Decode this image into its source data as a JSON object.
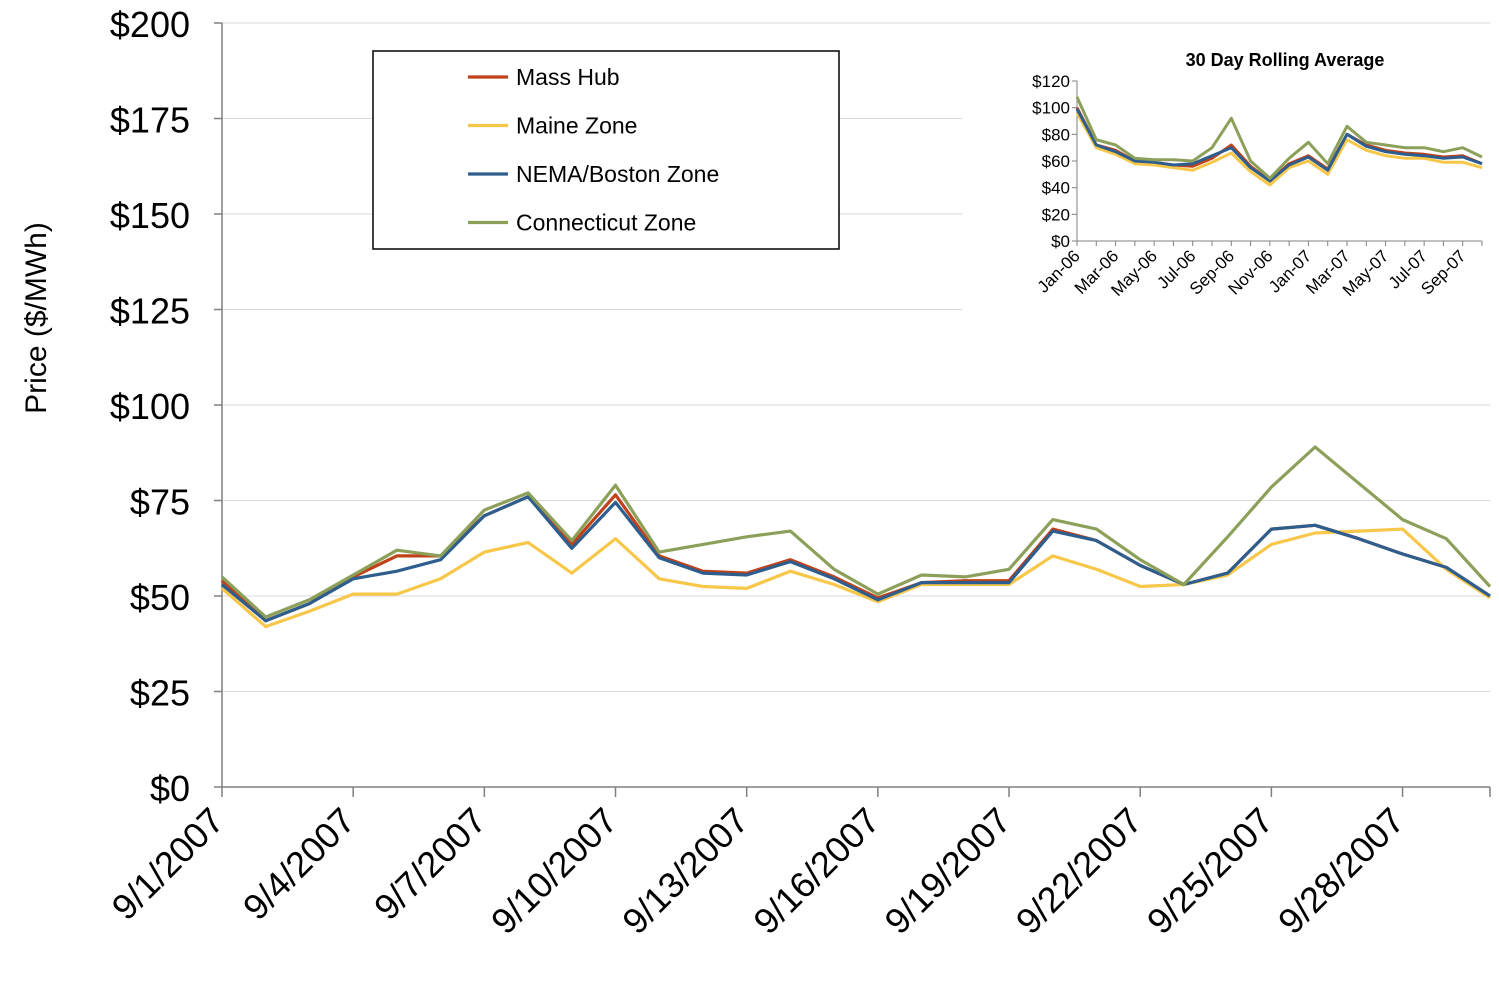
{
  "chart_data": [
    {
      "type": "line",
      "title": "",
      "xlabel": "",
      "ylabel": "Price ($/MWh)",
      "ylim": [
        0,
        200
      ],
      "y_ticks": [
        0,
        25,
        50,
        75,
        100,
        125,
        150,
        175,
        200
      ],
      "y_tick_labels": [
        "$0",
        "$25",
        "$50",
        "$75",
        "$100",
        "$125",
        "$150",
        "$175",
        "$200"
      ],
      "x": [
        "9/1/2007",
        "9/2/2007",
        "9/3/2007",
        "9/4/2007",
        "9/5/2007",
        "9/6/2007",
        "9/7/2007",
        "9/8/2007",
        "9/9/2007",
        "9/10/2007",
        "9/11/2007",
        "9/12/2007",
        "9/13/2007",
        "9/14/2007",
        "9/15/2007",
        "9/16/2007",
        "9/17/2007",
        "9/18/2007",
        "9/19/2007",
        "9/20/2007",
        "9/21/2007",
        "9/22/2007",
        "9/23/2007",
        "9/24/2007",
        "9/25/2007",
        "9/26/2007",
        "9/27/2007",
        "9/28/2007",
        "9/29/2007",
        "9/30/2007"
      ],
      "x_tick_labels": [
        "9/1/2007",
        "9/4/2007",
        "9/7/2007",
        "9/10/2007",
        "9/13/2007",
        "9/16/2007",
        "9/19/2007",
        "9/22/2007",
        "9/25/2007",
        "9/28/2007"
      ],
      "grid": "horizontal",
      "legend_position": "top-left",
      "series": [
        {
          "name": "Mass Hub",
          "color": "#C0421A",
          "values": [
            54,
            43.5,
            48,
            55,
            60.5,
            60.5,
            71,
            76,
            63.5,
            76.5,
            60.5,
            56.5,
            56,
            59.5,
            55,
            49.5,
            53.5,
            54,
            54,
            67.5,
            64.5,
            58,
            53,
            56,
            67.5,
            68.5,
            65,
            61,
            57.5,
            50
          ]
        },
        {
          "name": "Maine Zone",
          "color": "#F7C74A",
          "values": [
            52,
            42,
            46,
            50.5,
            50.5,
            54.5,
            61.5,
            64,
            56,
            65,
            54.5,
            52.5,
            52,
            56.5,
            53,
            48.5,
            53,
            53,
            53,
            60.5,
            57,
            52.5,
            53,
            55.5,
            63.5,
            66.5,
            67,
            67.5,
            57,
            49.5
          ]
        },
        {
          "name": "NEMA/Boston Zone",
          "color": "#2E5E8E",
          "values": [
            53,
            43.5,
            48,
            54.5,
            56.5,
            59.5,
            71,
            76,
            62.5,
            74.5,
            60,
            56,
            55.5,
            59,
            54.5,
            49,
            53.5,
            53.5,
            53.5,
            67,
            64.5,
            58,
            53,
            56,
            67.5,
            68.5,
            65,
            61,
            57.5,
            50
          ]
        },
        {
          "name": "Connecticut Zone",
          "color": "#8DA05A",
          "values": [
            55,
            44.5,
            49,
            55.5,
            62,
            60.5,
            72.5,
            77,
            64.5,
            79,
            61.5,
            63.5,
            65.5,
            67,
            57,
            50.5,
            55.5,
            55,
            57,
            70,
            67.5,
            59.5,
            53,
            65.5,
            78.5,
            89,
            79.5,
            70,
            65,
            52.5
          ]
        }
      ]
    },
    {
      "type": "line",
      "title": "30 Day Rolling Average",
      "xlabel": "",
      "ylabel": "",
      "ylim": [
        0,
        120
      ],
      "y_ticks": [
        0,
        20,
        40,
        60,
        80,
        100,
        120
      ],
      "y_tick_labels": [
        "$0",
        "$20",
        "$40",
        "$60",
        "$80",
        "$100",
        "$120"
      ],
      "x": [
        "Jan-06",
        "Feb-06",
        "Mar-06",
        "Apr-06",
        "May-06",
        "Jun-06",
        "Jul-06",
        "Aug-06",
        "Sep-06",
        "Oct-06",
        "Nov-06",
        "Dec-06",
        "Jan-07",
        "Feb-07",
        "Mar-07",
        "Apr-07",
        "May-07",
        "Jun-07",
        "Jul-07",
        "Aug-07",
        "Sep-07",
        "Oct-07"
      ],
      "x_tick_labels": [
        "Jan-06",
        "Mar-06",
        "May-06",
        "Jul-06",
        "Sep-06",
        "Nov-06",
        "Jan-07",
        "Mar-07",
        "May-07",
        "Jul-07",
        "Sep-07"
      ],
      "grid": "none",
      "series": [
        {
          "name": "Mass Hub",
          "color": "#C0421A",
          "values": [
            100,
            72,
            68,
            60,
            59,
            57,
            56,
            62,
            72,
            56,
            45,
            58,
            64,
            54,
            80,
            72,
            68,
            66,
            65,
            63,
            64,
            58
          ]
        },
        {
          "name": "Maine Zone",
          "color": "#F7C74A",
          "values": [
            96,
            70,
            65,
            58,
            57,
            55,
            53,
            59,
            66,
            52,
            42,
            55,
            60,
            50,
            76,
            68,
            64,
            62,
            62,
            59,
            59,
            55
          ]
        },
        {
          "name": "NEMA/Boston Zone",
          "color": "#2E5E8E",
          "values": [
            99,
            72,
            67,
            60,
            59,
            57,
            58,
            64,
            70,
            55,
            45,
            57,
            63,
            53,
            80,
            71,
            67,
            65,
            64,
            62,
            63,
            58
          ]
        },
        {
          "name": "Connecticut Zone",
          "color": "#8DA05A",
          "values": [
            108,
            76,
            72,
            62,
            61,
            61,
            60,
            70,
            92,
            60,
            47,
            62,
            74,
            58,
            86,
            74,
            72,
            70,
            70,
            67,
            70,
            63
          ]
        }
      ]
    }
  ]
}
